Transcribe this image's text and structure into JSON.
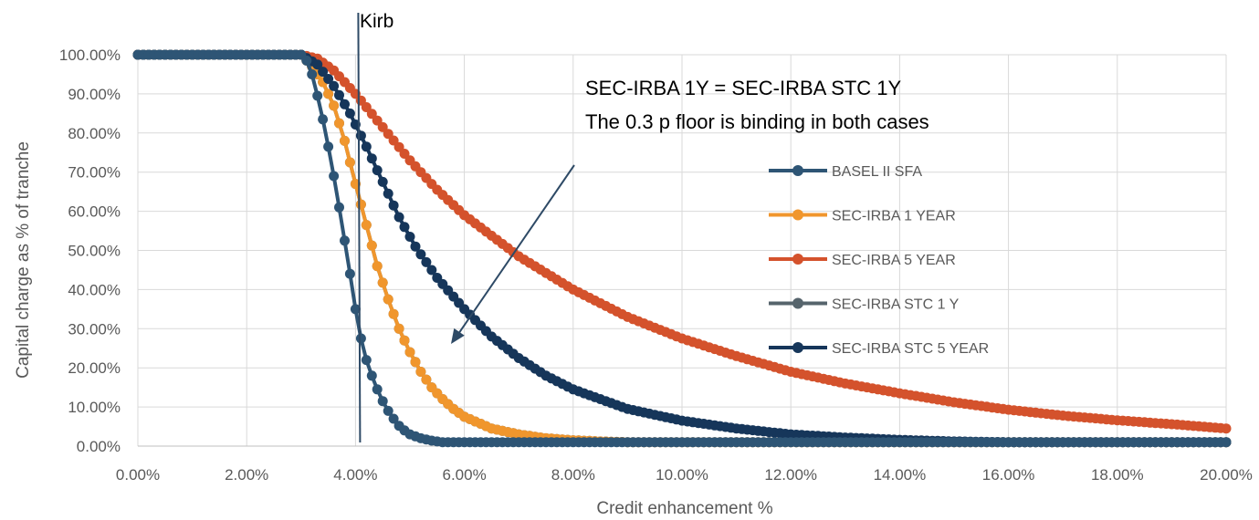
{
  "chart_data": {
    "type": "line",
    "title": "",
    "xlabel": "Credit enhancement %",
    "ylabel": "Capital charge as % of tranche",
    "xlim": [
      0,
      20
    ],
    "ylim": [
      0,
      100
    ],
    "x_ticks": [
      "0.00%",
      "2.00%",
      "4.00%",
      "6.00%",
      "8.00%",
      "10.00%",
      "12.00%",
      "14.00%",
      "16.00%",
      "18.00%",
      "20.00%"
    ],
    "y_ticks": [
      "0.00%",
      "10.00%",
      "20.00%",
      "30.00%",
      "40.00%",
      "50.00%",
      "60.00%",
      "70.00%",
      "80.00%",
      "90.00%",
      "100.00%"
    ],
    "grid": "vertical and horizontal",
    "legend_position": "right",
    "marker_step": 0.1,
    "series": [
      {
        "name": "BASEL II SFA",
        "color": "#2E5575",
        "x": [
          0,
          3.0,
          3.1,
          3.2,
          3.3,
          3.4,
          3.5,
          3.6,
          3.7,
          3.8,
          3.9,
          4.0,
          4.1,
          4.2,
          4.3,
          4.4,
          4.5,
          4.6,
          4.7,
          4.8,
          4.9,
          5.0,
          5.2,
          5.4,
          5.6,
          5.8,
          20
        ],
        "y": [
          100,
          100,
          98.5,
          95,
          89.5,
          83.5,
          76.5,
          69,
          61,
          52.5,
          44,
          35,
          27.5,
          22,
          18,
          14.5,
          11.5,
          9,
          7,
          5.2,
          4,
          3,
          2,
          1.4,
          1,
          1,
          1
        ]
      },
      {
        "name": "SEC-IRBA 1 YEAR",
        "color": "#F0962D",
        "x": [
          0,
          3.0,
          3.2,
          3.4,
          3.6,
          3.8,
          4.0,
          4.2,
          4.4,
          4.6,
          4.8,
          5.0,
          5.2,
          5.4,
          5.6,
          5.8,
          6.0,
          6.5,
          7.0,
          7.5,
          8.0,
          8.5,
          9.0,
          10,
          20
        ],
        "y": [
          100,
          100,
          97,
          93,
          87,
          78,
          67,
          56.5,
          46,
          37.5,
          30,
          24,
          19,
          15,
          12,
          9.5,
          7.5,
          4.5,
          3,
          2,
          1.5,
          1.2,
          1,
          1,
          1
        ]
      },
      {
        "name": "SEC-IRBA 5 YEAR",
        "color": "#D4522C",
        "x": [
          0,
          3.0,
          3.3,
          3.6,
          4.0,
          4.5,
          5.0,
          5.5,
          6.0,
          7.0,
          8.0,
          9.0,
          10,
          11,
          12,
          13,
          14,
          15,
          16,
          17,
          18,
          19,
          20
        ],
        "y": [
          100,
          100,
          99,
          96,
          90,
          81.5,
          73,
          65.5,
          59,
          48.5,
          40,
          33,
          27.5,
          23,
          19,
          16,
          13.5,
          11.2,
          9.3,
          7.8,
          6.6,
          5.6,
          4.5
        ]
      },
      {
        "name": "SEC-IRBA STC 1 Y",
        "color": "#56646C",
        "x": [
          0,
          3.0,
          3.2,
          3.4,
          3.6,
          3.8,
          4.0,
          4.2,
          4.4,
          4.6,
          4.8,
          5.0,
          5.2,
          5.4,
          5.6,
          5.8,
          6.0,
          6.5,
          7.0,
          7.5,
          8.0,
          8.5,
          9.0,
          10,
          20
        ],
        "y": [
          100,
          100,
          97,
          93,
          87,
          78,
          67,
          56.5,
          46,
          37.5,
          30,
          24,
          19,
          15,
          12,
          9.5,
          7.5,
          4.5,
          3,
          2,
          1.5,
          1.2,
          1,
          1,
          1
        ]
      },
      {
        "name": "SEC-IRBA STC 5 YEAR",
        "color": "#16365A",
        "x": [
          0,
          3.0,
          3.3,
          3.6,
          3.9,
          4.2,
          4.5,
          4.8,
          5.1,
          5.5,
          6.0,
          6.5,
          7.0,
          7.5,
          8.0,
          9.0,
          10,
          11,
          12,
          13,
          14,
          15,
          16,
          17,
          18,
          19,
          20
        ],
        "y": [
          100,
          100,
          97.5,
          92,
          85,
          76.5,
          67.5,
          58.5,
          51,
          43,
          35,
          28,
          22.5,
          18,
          14.5,
          9.5,
          6.5,
          4.5,
          3,
          2.2,
          1.6,
          1.2,
          1,
          1,
          1,
          1,
          1
        ]
      }
    ],
    "annotations": {
      "kirb_label": "Kirb",
      "kirb_x": 3.95,
      "note_line1": "SEC-IRBA 1Y = SEC-IRBA STC 1Y",
      "note_line2": "The 0.3 p floor is binding in both cases",
      "arrow_color": "#2E4A66"
    }
  }
}
